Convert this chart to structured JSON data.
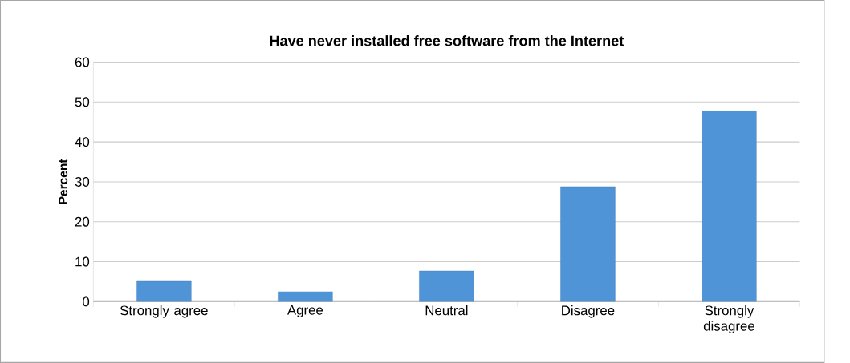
{
  "chart_data": {
    "type": "bar",
    "title": "Have never installed free software from the Internet",
    "ylabel": "Percent",
    "categories": [
      "Strongly agree",
      "Agree",
      "Neutral",
      "Disagree",
      "Strongly disagree"
    ],
    "values": [
      5.1,
      2.5,
      7.7,
      28.8,
      47.8
    ],
    "color": "#5094d8",
    "ylim": [
      0,
      60
    ],
    "yticks": [
      0,
      10,
      20,
      30,
      40,
      50,
      60
    ],
    "grid": "y"
  }
}
